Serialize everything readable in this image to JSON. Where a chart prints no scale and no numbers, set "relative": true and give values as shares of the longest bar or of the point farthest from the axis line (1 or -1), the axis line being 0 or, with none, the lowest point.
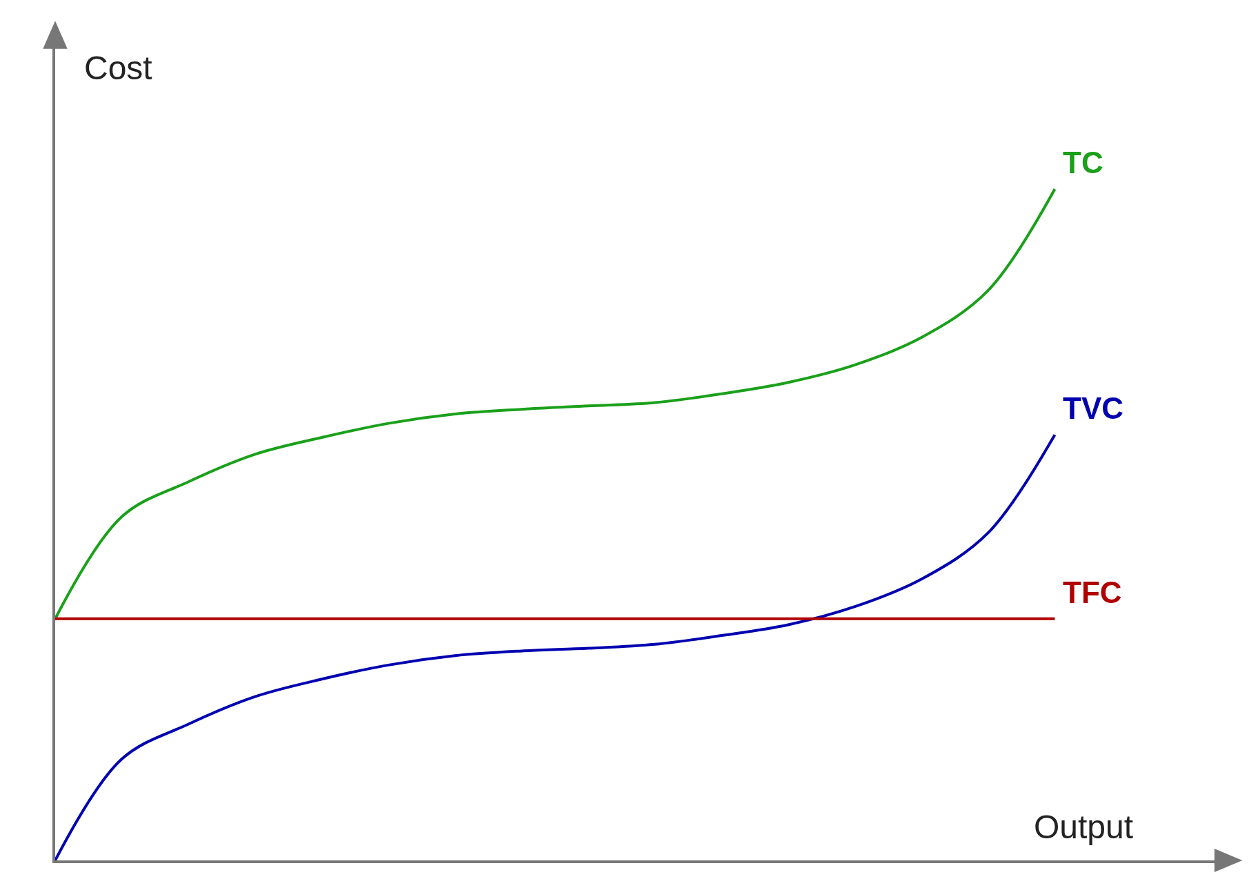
{
  "chart_data": {
    "type": "line",
    "relative": true,
    "xlabel": "Output",
    "ylabel": "Cost",
    "legend": false,
    "marker": "none",
    "line_style": "solid",
    "categories": [
      null,
      null,
      null,
      null,
      null,
      null,
      null,
      null,
      null,
      null,
      null,
      null,
      null,
      null,
      null,
      null
    ],
    "series": [
      {
        "name": "TC",
        "color": "#1aa01a",
        "values": [
          0.36,
          0.512,
          0.564,
          0.605,
          0.63,
          0.651,
          0.665,
          0.672,
          0.677,
          0.682,
          0.695,
          0.712,
          0.738,
          0.779,
          0.849,
          1.0
        ]
      },
      {
        "name": "TVC",
        "color": "#0000b0",
        "values": [
          0,
          0.151,
          0.203,
          0.244,
          0.27,
          0.291,
          0.305,
          0.312,
          0.316,
          0.322,
          0.335,
          0.351,
          0.378,
          0.419,
          0.488,
          0.634
        ]
      },
      {
        "name": "TFC",
        "color": "#b00000",
        "values": [
          0.36,
          0.36,
          0.36,
          0.36,
          0.36,
          0.36,
          0.36,
          0.36,
          0.36,
          0.36,
          0.36,
          0.36,
          0.36,
          0.36,
          0.36,
          0.36
        ]
      }
    ]
  }
}
